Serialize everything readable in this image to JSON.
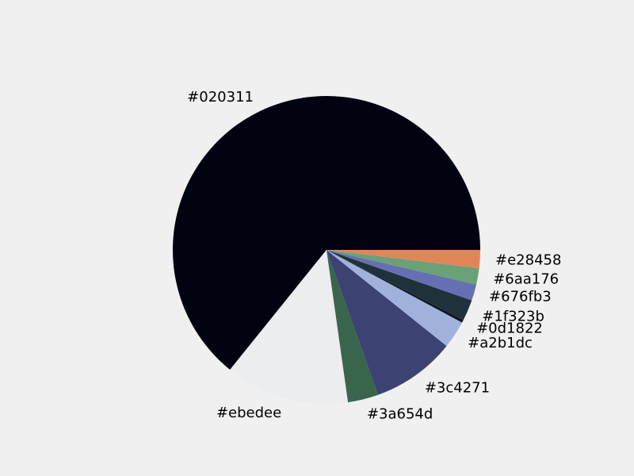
{
  "chart_data": {
    "type": "pie",
    "title": "",
    "start_angle_deg": 0,
    "direction": "counterclockwise",
    "slices": [
      {
        "label": "#020311",
        "value": 64.0,
        "color": "#020311"
      },
      {
        "label": "#ebedee",
        "value": 13.0,
        "color": "#ebedee"
      },
      {
        "label": "#3a654d",
        "value": 3.2,
        "color": "#3a654d"
      },
      {
        "label": "#3c4271",
        "value": 8.8,
        "color": "#3c4271"
      },
      {
        "label": "#a2b1dc",
        "value": 2.9,
        "color": "#a2b1dc"
      },
      {
        "label": "#0d1822",
        "value": 0.3,
        "color": "#0d1822"
      },
      {
        "label": "#1f323b",
        "value": 2.2,
        "color": "#1f323b"
      },
      {
        "label": "#676fb3",
        "value": 1.7,
        "color": "#676fb3"
      },
      {
        "label": "#6aa176",
        "value": 1.7,
        "color": "#6aa176"
      },
      {
        "label": "#e28458",
        "value": 1.9,
        "color": "#e28458"
      }
    ]
  }
}
